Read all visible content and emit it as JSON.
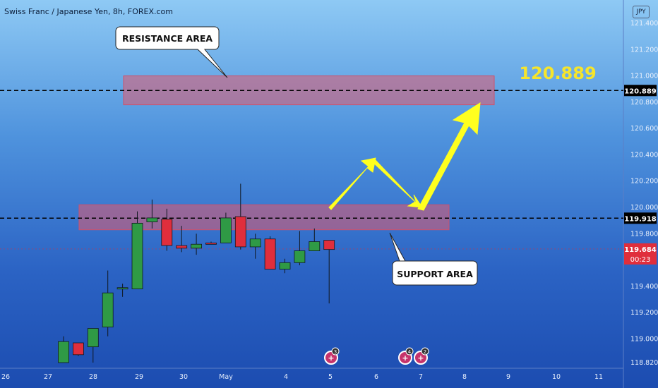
{
  "header": {
    "title": "Swiss Franc / Japanese Yen, 8h, FOREX.com",
    "currency": "JPY"
  },
  "chart_data": {
    "type": "candlestick",
    "ylim": [
      118.82,
      121.5
    ],
    "y_ticks": [
      121.4,
      121.2,
      121.0,
      120.8,
      120.6,
      120.4,
      120.2,
      120.0,
      119.8,
      119.4,
      119.2,
      119.0,
      118.82
    ],
    "y_tick_labels": [
      "121.400",
      "121.200",
      "121.000",
      "120.800",
      "120.600",
      "120.400",
      "120.200",
      "120.000",
      "119.800",
      "119.400",
      "119.200",
      "119.000",
      "118.820"
    ],
    "x_labels": [
      "26",
      "27",
      "28",
      "29",
      "30",
      "May",
      "4",
      "5",
      "6",
      "7",
      "8",
      "9",
      "10",
      "11"
    ],
    "candles": [
      {
        "o": 118.82,
        "h": 119.02,
        "l": 118.82,
        "c": 118.98
      },
      {
        "o": 118.97,
        "h": 118.97,
        "l": 118.87,
        "c": 118.88
      },
      {
        "o": 118.94,
        "h": 119.08,
        "l": 118.82,
        "c": 119.08
      },
      {
        "o": 119.09,
        "h": 119.52,
        "l": 119.02,
        "c": 119.35
      },
      {
        "o": 119.38,
        "h": 119.42,
        "l": 119.32,
        "c": 119.39
      },
      {
        "o": 119.38,
        "h": 119.97,
        "l": 119.38,
        "c": 119.88
      },
      {
        "o": 119.89,
        "h": 120.06,
        "l": 119.84,
        "c": 119.92
      },
      {
        "o": 119.91,
        "h": 119.99,
        "l": 119.67,
        "c": 119.71
      },
      {
        "o": 119.71,
        "h": 119.86,
        "l": 119.66,
        "c": 119.69
      },
      {
        "o": 119.69,
        "h": 119.8,
        "l": 119.64,
        "c": 119.72
      },
      {
        "o": 119.73,
        "h": 119.74,
        "l": 119.73,
        "c": 119.72
      },
      {
        "o": 119.73,
        "h": 119.96,
        "l": 119.73,
        "c": 119.92
      },
      {
        "o": 119.93,
        "h": 120.18,
        "l": 119.68,
        "c": 119.7
      },
      {
        "o": 119.7,
        "h": 119.8,
        "l": 119.61,
        "c": 119.76
      },
      {
        "o": 119.76,
        "h": 119.78,
        "l": 119.53,
        "c": 119.53
      },
      {
        "o": 119.53,
        "h": 119.61,
        "l": 119.5,
        "c": 119.58
      },
      {
        "o": 119.58,
        "h": 119.82,
        "l": 119.56,
        "c": 119.67
      },
      {
        "o": 119.67,
        "h": 119.84,
        "l": 119.67,
        "c": 119.74
      },
      {
        "o": 119.75,
        "h": 119.75,
        "l": 119.27,
        "c": 119.68
      }
    ],
    "resistance_zone": {
      "low": 120.78,
      "high": 121.0,
      "label": "RESISTANCE AREA"
    },
    "support_zone": {
      "low": 119.83,
      "high": 120.02,
      "label": "SUPPORT AREA"
    },
    "level_lines": [
      {
        "price": 120.889,
        "label": "120.889",
        "color": "#000000"
      },
      {
        "price": 119.918,
        "label": "119.918",
        "color": "#000000"
      }
    ],
    "current_price": {
      "price": 119.684,
      "label": "119.684",
      "countdown": "00:23",
      "color": "#e02e3c"
    },
    "target_label": "120.889",
    "colors": {
      "up": "#2f9a45",
      "down": "#e02e3c",
      "target": "#f6e52c",
      "arrow": "#ffff1e"
    },
    "event_markers": [
      {
        "x_label": "5",
        "count": "3"
      },
      {
        "x_label": "7",
        "count": "4"
      },
      {
        "x_label": "7",
        "count": "2"
      }
    ]
  }
}
